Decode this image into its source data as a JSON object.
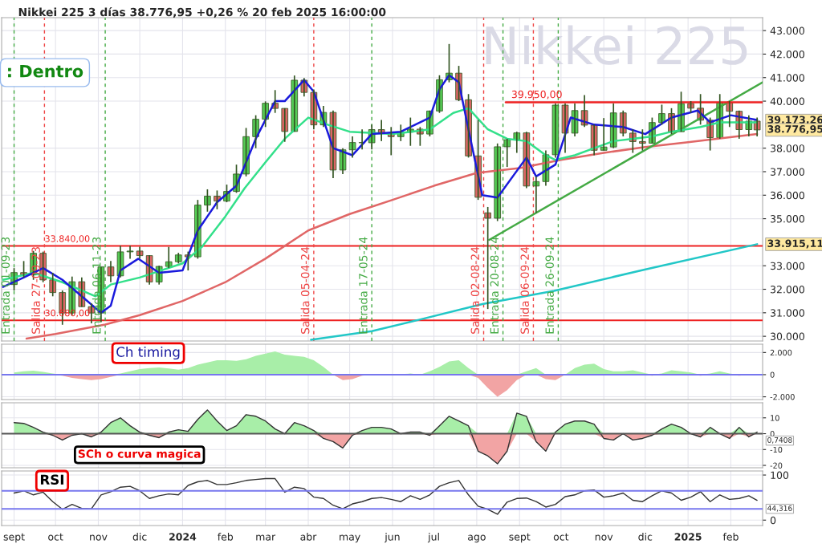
{
  "chart_data": [
    {
      "type": "candlestick",
      "title": "Nikkei 225 3 días 38.776,95 +0,26 % 20 feb 2025 16:00:00",
      "x": [
        "2023-09-01",
        "2023-09-08",
        "2023-09-15",
        "2023-09-22",
        "2023-09-29",
        "2023-10-06",
        "2023-10-13",
        "2023-10-20",
        "2023-10-27",
        "2023-11-03",
        "2023-11-10",
        "2023-11-17",
        "2023-11-24",
        "2023-12-01",
        "2023-12-08",
        "2023-12-15",
        "2023-12-22",
        "2023-12-29",
        "2024-01-05",
        "2024-01-12",
        "2024-01-19",
        "2024-01-26",
        "2024-02-02",
        "2024-02-09",
        "2024-02-16",
        "2024-02-23",
        "2024-03-01",
        "2024-03-08",
        "2024-03-15",
        "2024-03-22",
        "2024-03-29",
        "2024-04-05",
        "2024-04-12",
        "2024-04-19",
        "2024-04-26",
        "2024-05-03",
        "2024-05-10",
        "2024-05-17",
        "2024-05-24",
        "2024-05-31",
        "2024-06-07",
        "2024-06-14",
        "2024-06-21",
        "2024-06-28",
        "2024-07-05",
        "2024-07-12",
        "2024-07-19",
        "2024-07-26",
        "2024-08-02",
        "2024-08-09",
        "2024-08-16",
        "2024-08-23",
        "2024-08-30",
        "2024-09-06",
        "2024-09-13",
        "2024-09-20",
        "2024-09-27",
        "2024-10-04",
        "2024-10-11",
        "2024-10-18",
        "2024-10-25",
        "2024-11-01",
        "2024-11-08",
        "2024-11-15",
        "2024-11-22",
        "2024-11-29",
        "2024-12-06",
        "2024-12-13",
        "2024-12-20",
        "2024-12-27",
        "2025-01-03",
        "2025-01-10",
        "2025-01-17",
        "2025-01-24",
        "2025-01-31",
        "2025-02-07",
        "2025-02-14",
        "2025-02-20"
      ],
      "ohlc": [
        [
          32200,
          32900,
          31950,
          32710
        ],
        [
          32710,
          33200,
          32500,
          32610
        ],
        [
          32610,
          33630,
          32400,
          33530
        ],
        [
          33530,
          33600,
          32300,
          32400
        ],
        [
          32400,
          32700,
          31700,
          31860
        ],
        [
          31860,
          31950,
          30490,
          30990
        ],
        [
          30990,
          32540,
          30900,
          32320
        ],
        [
          32320,
          32500,
          31250,
          31260
        ],
        [
          31260,
          31400,
          30550,
          30990
        ],
        [
          30990,
          32950,
          30600,
          32950
        ],
        [
          32950,
          33200,
          32300,
          32570
        ],
        [
          32570,
          33850,
          32500,
          33590
        ],
        [
          33590,
          33850,
          33300,
          33625
        ],
        [
          33625,
          33810,
          33300,
          33430
        ],
        [
          33430,
          33450,
          32200,
          32310
        ],
        [
          32310,
          33000,
          32200,
          32970
        ],
        [
          32970,
          33800,
          32900,
          33170
        ],
        [
          33170,
          33550,
          33100,
          33460
        ],
        [
          33460,
          33600,
          32800,
          33380
        ],
        [
          33380,
          35800,
          33300,
          35580
        ],
        [
          35580,
          36250,
          35300,
          35960
        ],
        [
          35960,
          36200,
          35400,
          35750
        ],
        [
          35750,
          36450,
          35700,
          36160
        ],
        [
          36160,
          37300,
          36100,
          36900
        ],
        [
          36900,
          38860,
          36800,
          38490
        ],
        [
          38490,
          39400,
          38000,
          39230
        ],
        [
          39230,
          39990,
          38900,
          39910
        ],
        [
          39910,
          40470,
          39500,
          39690
        ],
        [
          39690,
          39700,
          38270,
          38710
        ],
        [
          38710,
          41090,
          38700,
          40890
        ],
        [
          40890,
          40980,
          40200,
          40370
        ],
        [
          40370,
          40500,
          38800,
          38990
        ],
        [
          38990,
          39800,
          38900,
          39520
        ],
        [
          39520,
          39600,
          36730,
          37070
        ],
        [
          37070,
          38000,
          36900,
          37930
        ],
        [
          37930,
          38500,
          37600,
          38240
        ],
        [
          38240,
          38800,
          37950,
          38230
        ],
        [
          38230,
          39000,
          37950,
          38790
        ],
        [
          38790,
          39200,
          38300,
          38650
        ],
        [
          38650,
          38900,
          37700,
          38490
        ],
        [
          38490,
          39000,
          38300,
          38680
        ],
        [
          38680,
          39300,
          38100,
          38810
        ],
        [
          38810,
          38900,
          38100,
          38600
        ],
        [
          38600,
          39600,
          38500,
          39580
        ],
        [
          39580,
          41100,
          39500,
          40910
        ],
        [
          40910,
          42430,
          40800,
          41190
        ],
        [
          41190,
          41500,
          40000,
          40060
        ],
        [
          40060,
          40300,
          37600,
          37670
        ],
        [
          37670,
          39200,
          35800,
          35910
        ],
        [
          35250,
          35500,
          31160,
          35020
        ],
        [
          35020,
          38200,
          34900,
          38060
        ],
        [
          38060,
          38400,
          37200,
          38360
        ],
        [
          38360,
          38700,
          37800,
          38650
        ],
        [
          38650,
          38700,
          36300,
          36390
        ],
        [
          36390,
          36800,
          35250,
          36580
        ],
        [
          36580,
          37900,
          36400,
          37720
        ],
        [
          37720,
          39900,
          37600,
          39830
        ],
        [
          39830,
          39900,
          37800,
          38640
        ],
        [
          38640,
          39900,
          38500,
          39600
        ],
        [
          39600,
          40260,
          38900,
          38980
        ],
        [
          38980,
          39000,
          37700,
          37910
        ],
        [
          37910,
          39280,
          37900,
          38050
        ],
        [
          38050,
          39900,
          38000,
          39500
        ],
        [
          39500,
          39600,
          38500,
          38640
        ],
        [
          38640,
          38800,
          37800,
          38280
        ],
        [
          38280,
          38800,
          37900,
          38210
        ],
        [
          38210,
          39300,
          38200,
          39090
        ],
        [
          39090,
          39850,
          39000,
          39470
        ],
        [
          39470,
          39700,
          38600,
          38700
        ],
        [
          38700,
          40400,
          38700,
          39890
        ],
        [
          39890,
          40000,
          39500,
          39700
        ],
        [
          39700,
          40300,
          39000,
          39190
        ],
        [
          39190,
          39300,
          37900,
          38450
        ],
        [
          38450,
          40300,
          38400,
          39930
        ],
        [
          39930,
          40000,
          38900,
          39570
        ],
        [
          39570,
          39600,
          38400,
          38790
        ],
        [
          38790,
          39400,
          38500,
          39150
        ],
        [
          39150,
          39300,
          38500,
          38777
        ]
      ],
      "series": [
        {
          "type": "line",
          "color": "#e06666",
          "x": [
            "2023-09-10",
            "2023-10-01",
            "2023-11-06",
            "2023-12-01",
            "2024-01-01",
            "2024-02-01",
            "2024-03-01",
            "2024-04-01",
            "2024-05-01",
            "2024-06-01",
            "2024-07-01",
            "2024-08-01",
            "2024-09-01",
            "2024-10-01",
            "2024-11-01",
            "2024-12-01",
            "2025-01-01",
            "2025-02-20"
          ],
          "values": [
            29900,
            30100,
            30500,
            30900,
            31500,
            32300,
            33300,
            34500,
            35200,
            35800,
            36400,
            36950,
            37150,
            37500,
            37800,
            38050,
            38250,
            38600
          ]
        },
        {
          "type": "line",
          "color": "#22c7c7",
          "x": [
            "2024-04-03",
            "2024-05-17",
            "2024-06-20",
            "2024-08-05",
            "2024-09-26",
            "2024-11-30",
            "2025-02-20"
          ],
          "values": [
            29850,
            30220,
            30700,
            31370,
            31930,
            32830,
            33915
          ]
        },
        {
          "type": "line",
          "color": "#44aa44",
          "x": [
            "2024-08-10",
            "2025-02-24"
          ],
          "values": [
            34100,
            40800
          ]
        },
        {
          "type": "line",
          "color": "#ee2222",
          "x": [
            "2024-08-22",
            "2025-02-24"
          ],
          "values": [
            39950,
            39950
          ]
        },
        {
          "type": "line",
          "color": "#33e08a",
          "x": [
            "2023-08-24",
            "2023-09-15",
            "2023-10-06",
            "2023-10-30",
            "2023-11-10",
            "2023-12-01",
            "2024-01-01",
            "2024-01-15",
            "2024-02-01",
            "2024-02-15",
            "2024-03-01",
            "2024-03-15",
            "2024-04-01",
            "2024-04-15",
            "2024-05-01",
            "2024-06-01",
            "2024-06-28",
            "2024-07-15",
            "2024-07-26",
            "2024-08-09",
            "2024-08-23",
            "2024-09-06",
            "2024-09-20",
            "2024-09-27",
            "2024-10-11",
            "2024-10-25",
            "2024-11-08",
            "2024-11-22",
            "2024-12-06",
            "2024-12-20",
            "2025-01-10",
            "2025-01-24",
            "2025-02-20"
          ],
          "values": [
            32400,
            32700,
            32300,
            31700,
            32200,
            32500,
            33100,
            33800,
            35100,
            36300,
            37400,
            38400,
            39300,
            39000,
            38700,
            38600,
            38800,
            39500,
            39700,
            38800,
            38400,
            38300,
            37700,
            37500,
            37700,
            38000,
            38300,
            38400,
            38500,
            38700,
            38900,
            39100,
            39100
          ]
        },
        {
          "type": "line",
          "color": "#1a1adc",
          "x": [
            "2023-08-24",
            "2023-09-08",
            "2023-09-22",
            "2023-10-06",
            "2023-10-20",
            "2023-11-03",
            "2023-11-10",
            "2023-11-17",
            "2023-11-30",
            "2023-12-15",
            "2024-01-01",
            "2024-01-12",
            "2024-01-26",
            "2024-02-09",
            "2024-02-23",
            "2024-03-08",
            "2024-03-15",
            "2024-03-29",
            "2024-04-05",
            "2024-04-19",
            "2024-05-03",
            "2024-05-17",
            "2024-06-07",
            "2024-06-28",
            "2024-07-05",
            "2024-07-12",
            "2024-07-19",
            "2024-07-26",
            "2024-08-05",
            "2024-08-16",
            "2024-09-06",
            "2024-09-13",
            "2024-09-27",
            "2024-10-08",
            "2024-10-25",
            "2024-11-15",
            "2024-12-01",
            "2024-12-20",
            "2025-01-08",
            "2025-01-17",
            "2025-02-01",
            "2025-02-20"
          ],
          "values": [
            32100,
            32500,
            32900,
            32400,
            31700,
            31000,
            31300,
            32800,
            33300,
            32700,
            32800,
            34500,
            35700,
            36400,
            38400,
            40000,
            40000,
            40900,
            40400,
            38000,
            37700,
            38600,
            38700,
            39300,
            40500,
            41100,
            40800,
            38800,
            36000,
            35900,
            37600,
            36800,
            37300,
            39300,
            39000,
            38900,
            38600,
            39300,
            39600,
            39100,
            39400,
            39200
          ]
        }
      ],
      "ref_lines": [
        {
          "axis": "y",
          "value": 33840,
          "label": "33.840,00",
          "color": "#ee2222"
        },
        {
          "axis": "y",
          "value": 30680,
          "label": "30.680,00",
          "color": "#ee2222"
        },
        {
          "axis": "x",
          "value": "2023-09-01",
          "label": "Entrada 01-09-23",
          "color": "#44aa44",
          "line_style": "dashed"
        },
        {
          "axis": "x",
          "value": "2023-09-23",
          "label": "Salida 27-09-23",
          "color": "#ee4444",
          "line_style": "dashed"
        },
        {
          "axis": "x",
          "value": "2023-11-06",
          "label": "Entrada 06-11-23",
          "color": "#44aa44",
          "line_style": "dashed"
        },
        {
          "axis": "x",
          "value": "2024-04-05",
          "label": "Salida 05-04-24",
          "color": "#ee4444",
          "line_style": "dashed"
        },
        {
          "axis": "x",
          "value": "2024-05-17",
          "label": "Entrada 17-05-24",
          "color": "#44aa44",
          "line_style": "dashed"
        },
        {
          "axis": "x",
          "value": "2024-08-06",
          "label": "Salida 02-08-24",
          "color": "#ee4444",
          "line_style": "dashed"
        },
        {
          "axis": "x",
          "value": "2024-08-20",
          "label": "Entrada 20-08-24",
          "color": "#44aa44",
          "line_style": "dashed"
        },
        {
          "axis": "x",
          "value": "2024-09-11",
          "label": "Salida 06-09-24",
          "color": "#ee4444",
          "line_style": "dashed"
        },
        {
          "axis": "x",
          "value": "2024-09-29",
          "label": "Entrada 26-09-24",
          "color": "#44aa44",
          "line_style": "dashed"
        }
      ],
      "annotations": [
        ": Dentro",
        "Nikkei 225",
        {
          "text": "39.950,00",
          "x": "2024-08-26",
          "y": 39950
        },
        {
          "text": "39.173,26",
          "x": "2025-02-24",
          "y": 39173
        },
        {
          "text": "38.776,95",
          "x": "2025-02-24",
          "y": 38777
        },
        {
          "text": "33.915,11",
          "x": "2025-02-24",
          "y": 33915
        }
      ],
      "xlim": [
        "2023-08-23",
        "2025-02-24"
      ],
      "ylim": [
        29800,
        43550
      ],
      "yticks": [
        {
          "value": 30000,
          "label": "30.000"
        },
        {
          "value": 31000,
          "label": "31.000"
        },
        {
          "value": 32000,
          "label": "32.000"
        },
        {
          "value": 33000,
          "label": "33.000"
        },
        {
          "value": 35000,
          "label": "35.000"
        },
        {
          "value": 36000,
          "label": "36.000"
        },
        {
          "value": 37000,
          "label": "37.000"
        },
        {
          "value": 38000,
          "label": "38.000"
        },
        {
          "value": 40000,
          "label": "40.000"
        },
        {
          "value": 41000,
          "label": "41.000"
        },
        {
          "value": 42000,
          "label": "42.000"
        },
        {
          "value": 43000,
          "label": "43.000"
        }
      ],
      "xticks": [
        {
          "value": "2023-09-01",
          "label": null
        },
        {
          "value": "2023-10-01",
          "label": null
        },
        {
          "value": "2023-11-01",
          "label": null
        },
        {
          "value": "2023-12-01",
          "label": null
        },
        {
          "value": "2024-01-01",
          "label": null
        },
        {
          "value": "2024-02-01",
          "label": null
        },
        {
          "value": "2024-03-01",
          "label": null
        },
        {
          "value": "2024-04-01",
          "label": null
        },
        {
          "value": "2024-05-01",
          "label": null
        },
        {
          "value": "2024-06-01",
          "label": null
        },
        {
          "value": "2024-07-01",
          "label": null
        },
        {
          "value": "2024-08-01",
          "label": null
        },
        {
          "value": "2024-09-01",
          "label": null
        },
        {
          "value": "2024-10-01",
          "label": null
        },
        {
          "value": "2024-11-01",
          "label": null
        },
        {
          "value": "2024-12-01",
          "label": null
        },
        {
          "value": "2025-01-01",
          "label": null
        },
        {
          "value": "2025-02-01",
          "label": null
        }
      ],
      "tick_labels": "y",
      "grid": true
    },
    {
      "type": "area",
      "title": "Ch timing",
      "x": [
        "2023-09-01",
        "2023-09-08",
        "2023-09-15",
        "2023-09-22",
        "2023-09-29",
        "2023-10-06",
        "2023-10-13",
        "2023-10-20",
        "2023-10-27",
        "2023-11-03",
        "2023-11-10",
        "2023-11-17",
        "2023-11-24",
        "2023-12-01",
        "2023-12-08",
        "2023-12-15",
        "2023-12-22",
        "2023-12-29",
        "2024-01-05",
        "2024-01-12",
        "2024-01-19",
        "2024-01-26",
        "2024-02-02",
        "2024-02-09",
        "2024-02-16",
        "2024-02-23",
        "2024-03-01",
        "2024-03-08",
        "2024-03-15",
        "2024-03-22",
        "2024-03-29",
        "2024-04-05",
        "2024-04-12",
        "2024-04-19",
        "2024-04-26",
        "2024-05-03",
        "2024-05-10",
        "2024-05-17",
        "2024-05-24",
        "2024-05-31",
        "2024-06-07",
        "2024-06-14",
        "2024-06-21",
        "2024-06-28",
        "2024-07-05",
        "2024-07-12",
        "2024-07-19",
        "2024-07-26",
        "2024-08-02",
        "2024-08-09",
        "2024-08-16",
        "2024-08-23",
        "2024-08-30",
        "2024-09-06",
        "2024-09-13",
        "2024-09-20",
        "2024-09-27",
        "2024-10-04",
        "2024-10-11",
        "2024-10-18",
        "2024-10-25",
        "2024-11-01",
        "2024-11-08",
        "2024-11-15",
        "2024-11-22",
        "2024-11-29",
        "2024-12-06",
        "2024-12-13",
        "2024-12-20",
        "2024-12-27",
        "2025-01-03",
        "2025-01-10",
        "2025-01-17",
        "2025-01-24",
        "2025-01-31",
        "2025-02-07",
        "2025-02-14",
        "2025-02-20"
      ],
      "series": [
        {
          "type": "area",
          "color": "#a8eea8",
          "values": [
            200,
            300,
            350,
            250,
            100,
            0,
            0,
            0,
            0,
            0,
            0,
            100,
            300,
            500,
            600,
            650,
            550,
            450,
            600,
            900,
            1100,
            1300,
            1300,
            1250,
            1400,
            1700,
            1900,
            2100,
            1800,
            1700,
            1600,
            1300,
            700,
            0,
            0,
            0,
            0,
            0,
            0,
            50,
            50,
            100,
            0,
            300,
            700,
            1200,
            1300,
            600,
            0,
            0,
            0,
            0,
            0,
            300,
            600,
            0,
            0,
            0,
            600,
            900,
            1000,
            500,
            300,
            300,
            400,
            200,
            0,
            100,
            400,
            300,
            200,
            0,
            100,
            300,
            100,
            0,
            0,
            0
          ]
        },
        {
          "type": "area",
          "color": "#f2a4a4",
          "values": [
            0,
            0,
            0,
            0,
            0,
            -100,
            -300,
            -400,
            -500,
            -400,
            -200,
            0,
            0,
            0,
            0,
            0,
            0,
            0,
            0,
            0,
            0,
            0,
            0,
            0,
            0,
            0,
            0,
            0,
            0,
            0,
            0,
            0,
            0,
            0,
            -500,
            -400,
            -100,
            0,
            0,
            0,
            0,
            0,
            0,
            0,
            0,
            0,
            0,
            0,
            -300,
            -1200,
            -2000,
            -1400,
            -500,
            0,
            0,
            -400,
            -500,
            0,
            0,
            0,
            0,
            0,
            0,
            0,
            0,
            0,
            -100,
            0,
            0,
            0,
            0,
            -100,
            0,
            0,
            0,
            -100,
            0,
            -50
          ]
        }
      ],
      "ref_lines": [
        {
          "axis": "y",
          "value": 0,
          "color": "#7777ee"
        }
      ],
      "xlim": [
        "2023-08-23",
        "2025-02-24"
      ],
      "ylim": [
        -2250,
        2750
      ],
      "yticks": [
        {
          "value": -2000,
          "label": "-2.000"
        },
        0,
        {
          "value": 2000,
          "label": "2.000"
        }
      ],
      "xticks": [
        {
          "value": "2023-09-01",
          "label": null
        },
        {
          "value": "2023-10-01",
          "label": null
        },
        {
          "value": "2023-11-01",
          "label": null
        },
        {
          "value": "2023-12-01",
          "label": null
        },
        {
          "value": "2024-01-01",
          "label": null
        },
        {
          "value": "2024-02-01",
          "label": null
        },
        {
          "value": "2024-03-01",
          "label": null
        },
        {
          "value": "2024-04-01",
          "label": null
        },
        {
          "value": "2024-05-01",
          "label": null
        },
        {
          "value": "2024-06-01",
          "label": null
        },
        {
          "value": "2024-07-01",
          "label": null
        },
        {
          "value": "2024-08-01",
          "label": null
        },
        {
          "value": "2024-09-01",
          "label": null
        },
        {
          "value": "2024-10-01",
          "label": null
        },
        {
          "value": "2024-11-01",
          "label": null
        },
        {
          "value": "2024-12-01",
          "label": null
        },
        {
          "value": "2025-01-01",
          "label": null
        },
        {
          "value": "2025-02-01",
          "label": null
        }
      ],
      "tick_labels": "y",
      "grid": true
    },
    {
      "type": "area",
      "title": "SCh o curva magica",
      "x": [
        "2023-09-01",
        "2023-09-08",
        "2023-09-15",
        "2023-09-22",
        "2023-09-29",
        "2023-10-06",
        "2023-10-13",
        "2023-10-20",
        "2023-10-27",
        "2023-11-03",
        "2023-11-10",
        "2023-11-17",
        "2023-11-24",
        "2023-12-01",
        "2023-12-08",
        "2023-12-15",
        "2023-12-22",
        "2023-12-29",
        "2024-01-05",
        "2024-01-12",
        "2024-01-19",
        "2024-01-26",
        "2024-02-02",
        "2024-02-09",
        "2024-02-16",
        "2024-02-23",
        "2024-03-01",
        "2024-03-08",
        "2024-03-15",
        "2024-03-22",
        "2024-03-29",
        "2024-04-05",
        "2024-04-12",
        "2024-04-19",
        "2024-04-26",
        "2024-05-03",
        "2024-05-10",
        "2024-05-17",
        "2024-05-24",
        "2024-05-31",
        "2024-06-07",
        "2024-06-14",
        "2024-06-21",
        "2024-06-28",
        "2024-07-05",
        "2024-07-12",
        "2024-07-19",
        "2024-07-26",
        "2024-08-02",
        "2024-08-09",
        "2024-08-16",
        "2024-08-23",
        "2024-08-30",
        "2024-09-06",
        "2024-09-13",
        "2024-09-20",
        "2024-09-27",
        "2024-10-04",
        "2024-10-11",
        "2024-10-18",
        "2024-10-25",
        "2024-11-01",
        "2024-11-08",
        "2024-11-15",
        "2024-11-22",
        "2024-11-29",
        "2024-12-06",
        "2024-12-13",
        "2024-12-20",
        "2024-12-27",
        "2025-01-03",
        "2025-01-10",
        "2025-01-17",
        "2025-01-24",
        "2025-01-31",
        "2025-02-07",
        "2025-02-14",
        "2025-02-20"
      ],
      "series": [
        {
          "type": "area",
          "color": "#a8eea8",
          "values": [
            7,
            6.5,
            4,
            1,
            0,
            0,
            0,
            0,
            0,
            1,
            7,
            10,
            5,
            1,
            0,
            0,
            1,
            2.5,
            1.5,
            9,
            15,
            8,
            2,
            5,
            12,
            11,
            8,
            3,
            0,
            7,
            5,
            2,
            0,
            0,
            0,
            0,
            2,
            4,
            4,
            3,
            0,
            1,
            1,
            0,
            5,
            11,
            8,
            5,
            0,
            0,
            0,
            0,
            13,
            11,
            0,
            0,
            1,
            6,
            8,
            8,
            6,
            0,
            0,
            0,
            0,
            0,
            0,
            3,
            6,
            4,
            0,
            0,
            4,
            0,
            0,
            4,
            0,
            1
          ]
        },
        {
          "type": "area",
          "color": "#f2a4a4",
          "values": [
            0,
            0,
            0,
            0,
            -1,
            -4,
            -1,
            0,
            -2,
            0,
            0,
            0,
            0,
            0,
            -1,
            -2.5,
            0,
            0,
            0,
            0,
            0,
            0,
            0,
            0,
            0,
            0,
            0,
            0,
            0,
            0,
            0,
            0,
            -3,
            -5,
            -9,
            -1,
            0,
            0,
            0,
            0,
            0,
            0,
            0,
            -1,
            0,
            0,
            0,
            0,
            -11,
            -14,
            -19,
            -11,
            0,
            0,
            -5,
            -11,
            0,
            0,
            0,
            0,
            0,
            -3,
            -4,
            0,
            -4,
            -3,
            -1,
            0,
            0,
            0,
            0,
            -2,
            0,
            0,
            -3,
            0,
            -2,
            0
          ]
        },
        {
          "type": "line",
          "color": "#333333",
          "values": [
            7,
            6.5,
            4,
            1,
            -1,
            -4,
            -1,
            0,
            -2,
            1,
            7,
            10,
            5,
            1,
            -1,
            -2.5,
            1,
            2.5,
            1.5,
            9,
            15,
            8,
            2,
            5,
            12,
            11,
            8,
            3,
            0,
            7,
            5,
            2,
            -3,
            -5,
            -9,
            -1,
            2,
            4,
            4,
            3,
            0,
            1,
            1,
            -1,
            5,
            11,
            8,
            5,
            -11,
            -14,
            -19,
            -11,
            13,
            11,
            -5,
            -11,
            1,
            6,
            8,
            8,
            6,
            -3,
            -4,
            0,
            -4,
            -3,
            -1,
            3,
            6,
            4,
            0,
            -2,
            4,
            0,
            -3,
            4,
            -2,
            1
          ]
        }
      ],
      "ref_lines": [
        {
          "axis": "y",
          "value": 0,
          "color": "#555555"
        }
      ],
      "annotations": [
        "0,7408"
      ],
      "xlim": [
        "2023-08-23",
        "2025-02-24"
      ],
      "ylim": [
        -21.5,
        19.5
      ],
      "yticks": [
        -20,
        -10,
        0,
        10
      ],
      "xticks": [
        {
          "value": "2023-09-01",
          "label": null
        },
        {
          "value": "2023-10-01",
          "label": null
        },
        {
          "value": "2023-11-01",
          "label": null
        },
        {
          "value": "2023-12-01",
          "label": null
        },
        {
          "value": "2024-01-01",
          "label": null
        },
        {
          "value": "2024-02-01",
          "label": null
        },
        {
          "value": "2024-03-01",
          "label": null
        },
        {
          "value": "2024-04-01",
          "label": null
        },
        {
          "value": "2024-05-01",
          "label": null
        },
        {
          "value": "2024-06-01",
          "label": null
        },
        {
          "value": "2024-07-01",
          "label": null
        },
        {
          "value": "2024-08-01",
          "label": null
        },
        {
          "value": "2024-09-01",
          "label": null
        },
        {
          "value": "2024-10-01",
          "label": null
        },
        {
          "value": "2024-11-01",
          "label": null
        },
        {
          "value": "2024-12-01",
          "label": null
        },
        {
          "value": "2025-01-01",
          "label": null
        },
        {
          "value": "2025-02-01",
          "label": null
        }
      ],
      "tick_labels": "y",
      "grid": true
    },
    {
      "type": "line",
      "title": "RSI",
      "color": "#333333",
      "x": [
        "2023-09-01",
        "2023-09-08",
        "2023-09-15",
        "2023-09-22",
        "2023-09-29",
        "2023-10-06",
        "2023-10-13",
        "2023-10-20",
        "2023-10-27",
        "2023-11-03",
        "2023-11-10",
        "2023-11-17",
        "2023-11-24",
        "2023-12-01",
        "2023-12-08",
        "2023-12-15",
        "2023-12-22",
        "2023-12-29",
        "2024-01-05",
        "2024-01-12",
        "2024-01-19",
        "2024-01-26",
        "2024-02-02",
        "2024-02-09",
        "2024-02-16",
        "2024-02-23",
        "2024-03-01",
        "2024-03-08",
        "2024-03-15",
        "2024-03-22",
        "2024-03-29",
        "2024-04-05",
        "2024-04-12",
        "2024-04-19",
        "2024-04-26",
        "2024-05-03",
        "2024-05-10",
        "2024-05-17",
        "2024-05-24",
        "2024-05-31",
        "2024-06-07",
        "2024-06-14",
        "2024-06-21",
        "2024-06-28",
        "2024-07-05",
        "2024-07-12",
        "2024-07-19",
        "2024-07-26",
        "2024-08-02",
        "2024-08-09",
        "2024-08-16",
        "2024-08-23",
        "2024-08-30",
        "2024-09-06",
        "2024-09-13",
        "2024-09-20",
        "2024-09-27",
        "2024-10-04",
        "2024-10-11",
        "2024-10-18",
        "2024-10-25",
        "2024-11-01",
        "2024-11-08",
        "2024-11-15",
        "2024-11-22",
        "2024-11-29",
        "2024-12-06",
        "2024-12-13",
        "2024-12-20",
        "2024-12-27",
        "2025-01-03",
        "2025-01-10",
        "2025-01-17",
        "2025-01-24",
        "2025-01-31",
        "2025-02-07",
        "2025-02-14",
        "2025-02-20"
      ],
      "values": [
        60,
        65,
        56,
        62,
        41,
        24,
        35,
        26,
        25,
        56,
        63,
        73,
        75,
        65,
        48,
        54,
        58,
        56,
        77,
        85,
        88,
        79,
        79,
        83,
        88,
        90,
        92,
        92,
        62,
        73,
        70,
        51,
        48,
        33,
        25,
        36,
        41,
        48,
        50,
        46,
        41,
        54,
        46,
        56,
        75,
        83,
        88,
        56,
        31,
        24,
        13,
        40,
        48,
        49,
        41,
        29,
        35,
        52,
        56,
        65,
        67,
        51,
        54,
        60,
        44,
        41,
        54,
        65,
        60,
        44,
        51,
        63,
        41,
        56,
        46,
        48,
        54,
        44
      ],
      "ref_lines": [
        {
          "axis": "y",
          "value": 65,
          "color": "#7777ee"
        },
        {
          "axis": "y",
          "value": 25,
          "color": "#7777ee"
        }
      ],
      "annotations": [
        "44,316"
      ],
      "xlim": [
        "2023-08-23",
        "2025-02-24"
      ],
      "ylim": [
        -12,
        109
      ],
      "yticks": [
        0,
        100
      ],
      "xticks": [
        {
          "value": "2023-09-01",
          "label": "sept"
        },
        {
          "value": "2023-10-01",
          "label": "oct"
        },
        {
          "value": "2023-11-01",
          "label": "nov"
        },
        {
          "value": "2023-12-01",
          "label": "dic"
        },
        {
          "value": "2024-01-01",
          "label": "2024"
        },
        {
          "value": "2024-02-01",
          "label": "feb"
        },
        {
          "value": "2024-03-01",
          "label": "mar"
        },
        {
          "value": "2024-04-01",
          "label": "abr"
        },
        {
          "value": "2024-05-01",
          "label": "may"
        },
        {
          "value": "2024-06-01",
          "label": "jun"
        },
        {
          "value": "2024-07-01",
          "label": "jul"
        },
        {
          "value": "2024-08-01",
          "label": "ago"
        },
        {
          "value": "2024-09-01",
          "label": "sept"
        },
        {
          "value": "2024-10-01",
          "label": "oct"
        },
        {
          "value": "2024-11-01",
          "label": "nov"
        },
        {
          "value": "2024-12-01",
          "label": "dic"
        },
        {
          "value": "2025-01-01",
          "label": "2025"
        },
        {
          "value": "2025-02-01",
          "label": "feb"
        }
      ],
      "grid": true
    }
  ]
}
